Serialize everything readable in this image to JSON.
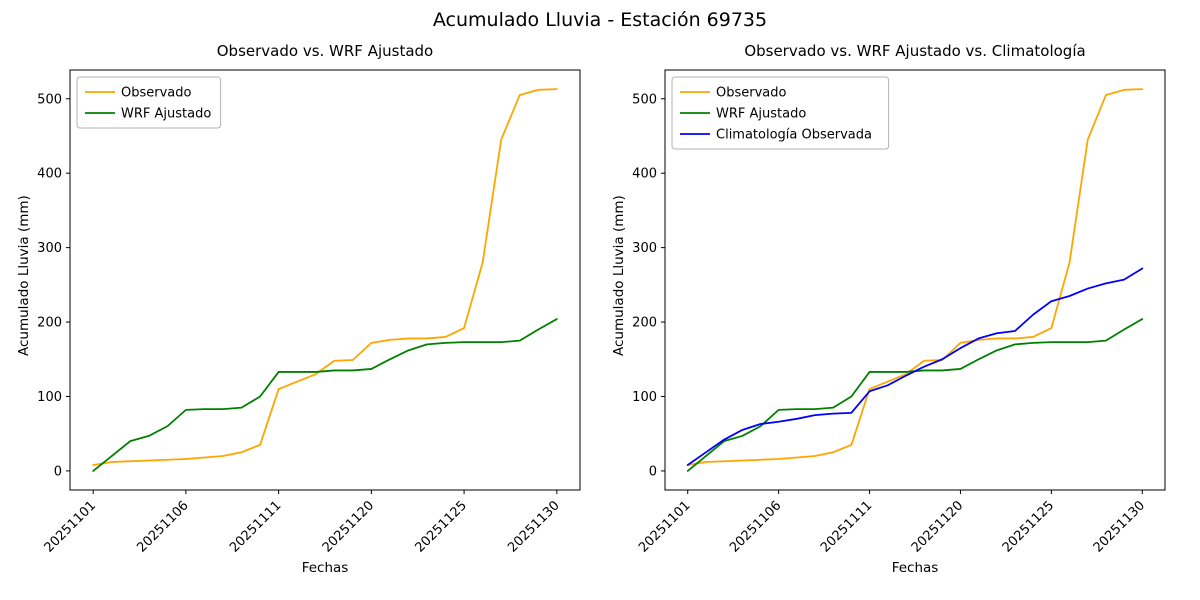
{
  "figure": {
    "suptitle": "Acumulado Lluvia - Estación 69735"
  },
  "chart_data": [
    {
      "type": "line",
      "title": "Observado vs. WRF Ajustado",
      "xlabel": "Fechas",
      "ylabel": "Acumulado Lluvia (mm)",
      "x_tick_labels": [
        "20251101",
        "20251106",
        "20251111",
        "20251120",
        "20251125",
        "20251130"
      ],
      "x_tick_positions": [
        0,
        5,
        10,
        15,
        20,
        25
      ],
      "x_point_count": 26,
      "x_tick_rotation": 45,
      "xlim": [
        -1.25,
        26.25
      ],
      "ylim": [
        -25.65,
        538.65
      ],
      "y_ticks": [
        0,
        100,
        200,
        300,
        400,
        500
      ],
      "grid": false,
      "legend_position": "upper left",
      "series": [
        {
          "name": "Observado",
          "color": "#ffa500",
          "values": [
            8,
            12,
            13,
            14,
            15,
            16,
            18,
            20,
            25,
            35,
            110,
            120,
            130,
            148,
            149,
            172,
            176,
            178,
            178,
            180,
            192,
            280,
            445,
            505,
            512,
            513
          ]
        },
        {
          "name": "WRF Ajustado",
          "color": "#008000",
          "values": [
            0,
            20,
            40,
            47,
            60,
            82,
            83,
            83,
            85,
            100,
            133,
            133,
            133,
            135,
            135,
            137,
            150,
            162,
            170,
            172,
            173,
            173,
            173,
            175,
            190,
            204
          ]
        }
      ]
    },
    {
      "type": "line",
      "title": "Observado vs. WRF Ajustado vs. Climatología",
      "xlabel": "Fechas",
      "ylabel": "Acumulado Lluvia (mm)",
      "x_tick_labels": [
        "20251101",
        "20251106",
        "20251111",
        "20251120",
        "20251125",
        "20251130"
      ],
      "x_tick_positions": [
        0,
        5,
        10,
        15,
        20,
        25
      ],
      "x_point_count": 26,
      "x_tick_rotation": 45,
      "xlim": [
        -1.25,
        26.25
      ],
      "ylim": [
        -25.65,
        538.65
      ],
      "y_ticks": [
        0,
        100,
        200,
        300,
        400,
        500
      ],
      "grid": false,
      "legend_position": "upper left",
      "series": [
        {
          "name": "Observado",
          "color": "#ffa500",
          "values": [
            8,
            12,
            13,
            14,
            15,
            16,
            18,
            20,
            25,
            35,
            110,
            120,
            130,
            148,
            149,
            172,
            176,
            178,
            178,
            180,
            192,
            280,
            445,
            505,
            512,
            513
          ]
        },
        {
          "name": "WRF Ajustado",
          "color": "#008000",
          "values": [
            0,
            20,
            40,
            47,
            60,
            82,
            83,
            83,
            85,
            100,
            133,
            133,
            133,
            135,
            135,
            137,
            150,
            162,
            170,
            172,
            173,
            173,
            173,
            175,
            190,
            204
          ]
        },
        {
          "name": "Climatología Observada",
          "color": "#0000ff",
          "values": [
            8,
            25,
            42,
            55,
            63,
            66,
            70,
            75,
            77,
            78,
            107,
            115,
            128,
            140,
            150,
            165,
            178,
            185,
            188,
            210,
            228,
            235,
            245,
            252,
            257,
            272
          ]
        }
      ]
    }
  ]
}
